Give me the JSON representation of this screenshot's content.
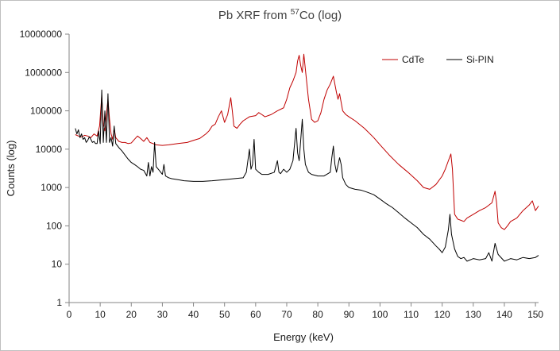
{
  "chart_data": {
    "type": "line",
    "title": {
      "prefix": "Pb XRF from ",
      "superscript": "57",
      "suffix": "Co (log)"
    },
    "xlabel": "Energy (keV)",
    "ylabel": "Counts (log)",
    "xlim": [
      0,
      151
    ],
    "ylim": [
      1,
      10000000
    ],
    "yscale": "log",
    "grid": false,
    "legend_position": "top-right",
    "x_ticks": [
      0,
      10,
      20,
      30,
      40,
      50,
      60,
      70,
      80,
      90,
      100,
      110,
      120,
      130,
      140,
      150
    ],
    "y_ticks": [
      {
        "value": 1,
        "label": "1"
      },
      {
        "value": 10,
        "label": "10"
      },
      {
        "value": 100,
        "label": "100"
      },
      {
        "value": 1000,
        "label": "1000"
      },
      {
        "value": 10000,
        "label": "10000"
      },
      {
        "value": 100000,
        "label": "100000"
      },
      {
        "value": 1000000,
        "label": "1000000"
      },
      {
        "value": 10000000,
        "label": "10000000"
      }
    ],
    "series": [
      {
        "name": "CdTe",
        "color": "#c00000",
        "points": [
          [
            2,
            24000
          ],
          [
            3,
            22000
          ],
          [
            4,
            21000
          ],
          [
            5,
            23000
          ],
          [
            6,
            22000
          ],
          [
            7,
            20000
          ],
          [
            8,
            25000
          ],
          [
            9,
            22000
          ],
          [
            9.8,
            40000
          ],
          [
            10.5,
            250000
          ],
          [
            11,
            45000
          ],
          [
            11.5,
            30000
          ],
          [
            12,
            80000
          ],
          [
            12.5,
            200000
          ],
          [
            13,
            60000
          ],
          [
            13.5,
            25000
          ],
          [
            14,
            18000
          ],
          [
            14.5,
            35000
          ],
          [
            15,
            20000
          ],
          [
            16,
            16000
          ],
          [
            17,
            15000
          ],
          [
            18,
            15000
          ],
          [
            19,
            14000
          ],
          [
            20,
            14500
          ],
          [
            21,
            18000
          ],
          [
            22,
            22000
          ],
          [
            23,
            19000
          ],
          [
            24,
            16000
          ],
          [
            25,
            20000
          ],
          [
            26,
            15000
          ],
          [
            27,
            14000
          ],
          [
            28,
            13000
          ],
          [
            30,
            12500
          ],
          [
            32,
            13000
          ],
          [
            35,
            14000
          ],
          [
            38,
            15000
          ],
          [
            40,
            17000
          ],
          [
            42,
            19000
          ],
          [
            44,
            25000
          ],
          [
            45,
            30000
          ],
          [
            46,
            40000
          ],
          [
            47,
            45000
          ],
          [
            48,
            70000
          ],
          [
            49,
            100000
          ],
          [
            50,
            50000
          ],
          [
            51,
            80000
          ],
          [
            52,
            220000
          ],
          [
            52.5,
            100000
          ],
          [
            53,
            40000
          ],
          [
            54,
            35000
          ],
          [
            55,
            45000
          ],
          [
            56,
            55000
          ],
          [
            58,
            70000
          ],
          [
            60,
            75000
          ],
          [
            61,
            90000
          ],
          [
            62,
            80000
          ],
          [
            63,
            70000
          ],
          [
            65,
            80000
          ],
          [
            67,
            100000
          ],
          [
            69,
            120000
          ],
          [
            70,
            200000
          ],
          [
            71,
            400000
          ],
          [
            72,
            600000
          ],
          [
            73,
            1000000
          ],
          [
            73.5,
            2000000
          ],
          [
            74,
            2800000
          ],
          [
            74.5,
            1500000
          ],
          [
            75,
            1000000
          ],
          [
            75.5,
            3000000
          ],
          [
            76,
            1200000
          ],
          [
            77,
            200000
          ],
          [
            78,
            60000
          ],
          [
            79,
            50000
          ],
          [
            80,
            55000
          ],
          [
            81,
            90000
          ],
          [
            82,
            200000
          ],
          [
            83,
            350000
          ],
          [
            84,
            500000
          ],
          [
            85,
            800000
          ],
          [
            86,
            300000
          ],
          [
            86.5,
            200000
          ],
          [
            87,
            280000
          ],
          [
            88,
            100000
          ],
          [
            89,
            80000
          ],
          [
            90,
            70000
          ],
          [
            92,
            55000
          ],
          [
            95,
            35000
          ],
          [
            98,
            20000
          ],
          [
            100,
            13000
          ],
          [
            103,
            7000
          ],
          [
            106,
            4000
          ],
          [
            109,
            2500
          ],
          [
            112,
            1500
          ],
          [
            114,
            1000
          ],
          [
            116,
            900
          ],
          [
            118,
            1200
          ],
          [
            120,
            2000
          ],
          [
            121,
            3000
          ],
          [
            122,
            5000
          ],
          [
            122.8,
            7500
          ],
          [
            123.3,
            3000
          ],
          [
            124,
            200
          ],
          [
            125,
            150
          ],
          [
            126,
            140
          ],
          [
            127,
            130
          ],
          [
            128,
            160
          ],
          [
            130,
            200
          ],
          [
            132,
            250
          ],
          [
            134,
            300
          ],
          [
            136,
            400
          ],
          [
            137,
            800
          ],
          [
            137.5,
            400
          ],
          [
            138,
            120
          ],
          [
            139,
            90
          ],
          [
            140,
            80
          ],
          [
            141,
            100
          ],
          [
            142,
            130
          ],
          [
            144,
            160
          ],
          [
            146,
            250
          ],
          [
            148,
            350
          ],
          [
            149,
            450
          ],
          [
            150,
            250
          ],
          [
            151,
            330
          ]
        ]
      },
      {
        "name": "Si-PIN",
        "color": "#000000",
        "points": [
          [
            2,
            35000
          ],
          [
            2.5,
            25000
          ],
          [
            3,
            32000
          ],
          [
            3.5,
            20000
          ],
          [
            4,
            25000
          ],
          [
            4.5,
            18000
          ],
          [
            5,
            20000
          ],
          [
            5.5,
            15000
          ],
          [
            6,
            17000
          ],
          [
            6.5,
            21000
          ],
          [
            7,
            18000
          ],
          [
            7.5,
            15000
          ],
          [
            8,
            16000
          ],
          [
            8.5,
            14000
          ],
          [
            9,
            14000
          ],
          [
            9.5,
            30000
          ],
          [
            10,
            14000
          ],
          [
            10.5,
            350000
          ],
          [
            11,
            15000
          ],
          [
            11.5,
            100000
          ],
          [
            12,
            15000
          ],
          [
            12.5,
            280000
          ],
          [
            13,
            15000
          ],
          [
            13.5,
            20000
          ],
          [
            14,
            12000
          ],
          [
            14.5,
            40000
          ],
          [
            15,
            14000
          ],
          [
            16,
            11000
          ],
          [
            17,
            9000
          ],
          [
            18,
            7000
          ],
          [
            19,
            5500
          ],
          [
            20,
            4500
          ],
          [
            21,
            4000
          ],
          [
            22,
            3500
          ],
          [
            23,
            3000
          ],
          [
            24,
            2800
          ],
          [
            25,
            2000
          ],
          [
            25.5,
            4500
          ],
          [
            26,
            2000
          ],
          [
            26.5,
            3500
          ],
          [
            27,
            2500
          ],
          [
            27.5,
            15000
          ],
          [
            28,
            3500
          ],
          [
            29,
            2800
          ],
          [
            30,
            2200
          ],
          [
            30.5,
            4000
          ],
          [
            31,
            2000
          ],
          [
            32,
            1800
          ],
          [
            33,
            1700
          ],
          [
            35,
            1600
          ],
          [
            37,
            1500
          ],
          [
            40,
            1450
          ],
          [
            43,
            1450
          ],
          [
            46,
            1500
          ],
          [
            50,
            1600
          ],
          [
            53,
            1700
          ],
          [
            56,
            1800
          ],
          [
            57,
            2500
          ],
          [
            58,
            10000
          ],
          [
            58.5,
            3000
          ],
          [
            59,
            4000
          ],
          [
            59.5,
            18000
          ],
          [
            60,
            3000
          ],
          [
            61,
            2500
          ],
          [
            62,
            2200
          ],
          [
            64,
            2200
          ],
          [
            66,
            2500
          ],
          [
            67,
            5000
          ],
          [
            67.5,
            2500
          ],
          [
            68,
            2300
          ],
          [
            69,
            3000
          ],
          [
            70,
            2500
          ],
          [
            71,
            3000
          ],
          [
            72,
            5000
          ],
          [
            73,
            35000
          ],
          [
            73.5,
            8000
          ],
          [
            74,
            5000
          ],
          [
            75,
            60000
          ],
          [
            75.5,
            10000
          ],
          [
            76,
            4000
          ],
          [
            77,
            2500
          ],
          [
            78,
            2200
          ],
          [
            80,
            2000
          ],
          [
            82,
            2000
          ],
          [
            84,
            2500
          ],
          [
            84.5,
            6000
          ],
          [
            85,
            12000
          ],
          [
            85.5,
            4000
          ],
          [
            86,
            2500
          ],
          [
            87,
            6000
          ],
          [
            87.5,
            4000
          ],
          [
            88,
            1800
          ],
          [
            89,
            1200
          ],
          [
            90,
            1000
          ],
          [
            92,
            900
          ],
          [
            94,
            850
          ],
          [
            96,
            750
          ],
          [
            98,
            650
          ],
          [
            100,
            500
          ],
          [
            102,
            380
          ],
          [
            104,
            300
          ],
          [
            106,
            220
          ],
          [
            108,
            160
          ],
          [
            110,
            120
          ],
          [
            112,
            90
          ],
          [
            114,
            60
          ],
          [
            116,
            45
          ],
          [
            118,
            30
          ],
          [
            119,
            25
          ],
          [
            120,
            20
          ],
          [
            121,
            28
          ],
          [
            122,
            80
          ],
          [
            122.5,
            200
          ],
          [
            123,
            60
          ],
          [
            124,
            25
          ],
          [
            125,
            16
          ],
          [
            126,
            14
          ],
          [
            127,
            15
          ],
          [
            128,
            12
          ],
          [
            130,
            14
          ],
          [
            132,
            13
          ],
          [
            134,
            14
          ],
          [
            135,
            20
          ],
          [
            136,
            12
          ],
          [
            137,
            35
          ],
          [
            138,
            18
          ],
          [
            140,
            12
          ],
          [
            142,
            14
          ],
          [
            144,
            13
          ],
          [
            146,
            15
          ],
          [
            148,
            14
          ],
          [
            150,
            15
          ],
          [
            151,
            17
          ]
        ]
      }
    ]
  }
}
